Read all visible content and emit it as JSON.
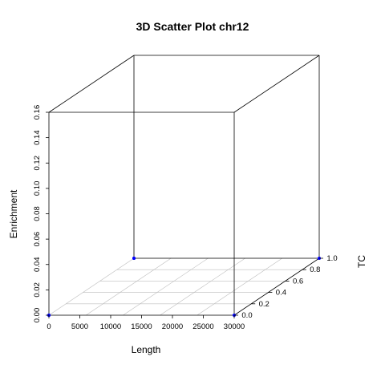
{
  "chart_data": {
    "type": "scatter",
    "title": "3D Scatter Plot chr12",
    "xlabel": "Length",
    "ylabel": "Enrichment",
    "zlabel": "TC",
    "xlim": [
      0,
      30000
    ],
    "ylim": [
      0,
      0.16
    ],
    "zlim": [
      0,
      1
    ],
    "x_ticks": [
      "0",
      "5000",
      "10000",
      "15000",
      "20000",
      "25000",
      "30000"
    ],
    "y_ticks": [
      "0.00",
      "0.02",
      "0.04",
      "0.06",
      "0.08",
      "0.10",
      "0.12",
      "0.14",
      "0.16"
    ],
    "z_ticks": [
      "0.0",
      "0.2",
      "0.4",
      "0.6",
      "0.8",
      "1.0"
    ],
    "grid": true,
    "box": true,
    "color_low": "#0000ff",
    "color_high": "#ff0000",
    "series": [
      {
        "name": "",
        "length": [
          0,
          30000
        ],
        "enrichment": [
          0,
          0
        ],
        "tc": [
          0,
          0
        ]
      },
      {
        "name": "",
        "length": [
          0,
          30000
        ],
        "enrichment": [
          0,
          0
        ],
        "tc": [
          1,
          1
        ]
      },
      {
        "name": "",
        "length": [
          0,
          0
        ],
        "enrichment": [
          0,
          0
        ],
        "tc": [
          0,
          1
        ]
      }
    ]
  }
}
